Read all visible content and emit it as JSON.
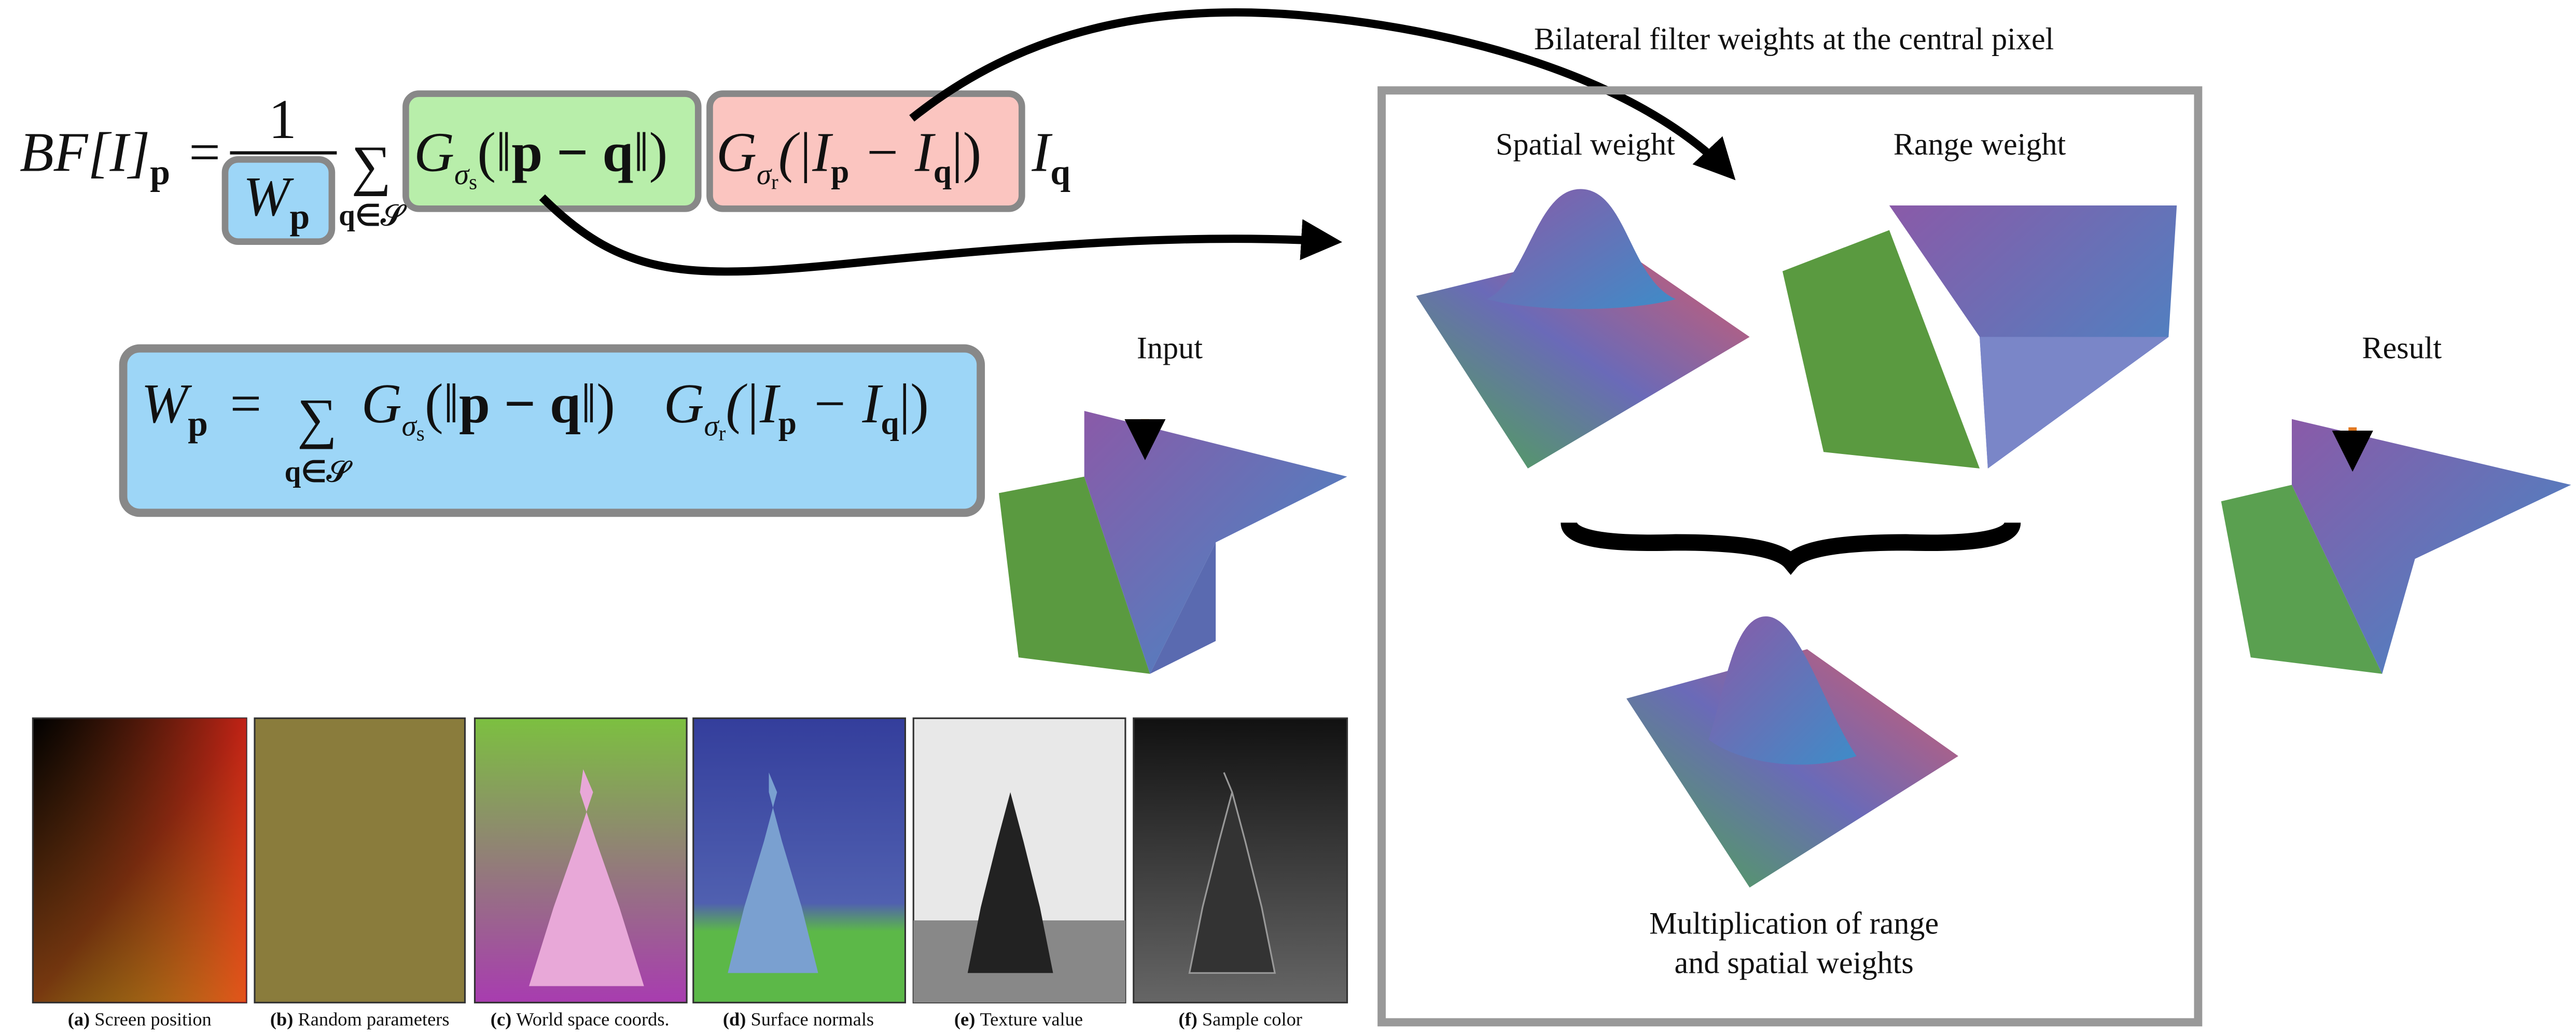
{
  "equation_main": {
    "lhs": "BF[I]",
    "lhs_sub": "p",
    "equals": "=",
    "numerator": "1",
    "denominator": "W",
    "denominator_sub": "p",
    "sum": "∑",
    "sum_sub": "q∈𝒮",
    "spatial": [
      "G",
      "σ",
      "s",
      "(‖",
      "p − q",
      "‖)"
    ],
    "range": [
      "G",
      "σ",
      "r",
      "(|I",
      "p",
      " − I",
      "q",
      "|)"
    ],
    "weight": "I",
    "weight_sub": "q"
  },
  "equation_norm": {
    "lhs": "W",
    "lhs_sub": "p",
    "equals": "=",
    "sum": "∑",
    "sum_sub": "q∈𝒮",
    "spatial": [
      "G",
      "σ",
      "s",
      "(‖",
      "p − q",
      "‖)"
    ],
    "range": [
      "G",
      "σ",
      "r",
      "(|I",
      "p",
      " − I",
      "q",
      "|)"
    ]
  },
  "plots": {
    "title": "Bilateral filter weights at the central pixel",
    "spatial": "Spatial weight",
    "range": "Range weight",
    "product_line1": "Multiplication of range",
    "product_line2": "and spatial weights",
    "input": "Input",
    "result": "Result"
  },
  "panels": [
    {
      "tag": "(a)",
      "label": "Screen position"
    },
    {
      "tag": "(b)",
      "label": "Random parameters"
    },
    {
      "tag": "(c)",
      "label": "World space coords."
    },
    {
      "tag": "(d)",
      "label": "Surface normals"
    },
    {
      "tag": "(e)",
      "label": "Texture value"
    },
    {
      "tag": "(f)",
      "label": "Sample color"
    }
  ]
}
